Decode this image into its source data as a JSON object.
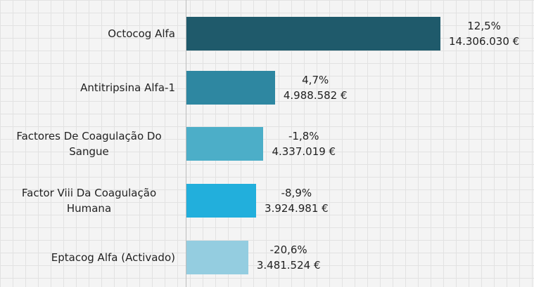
{
  "chart_data": {
    "type": "bar",
    "orientation": "horizontal",
    "categories": [
      "Octocog Alfa",
      "Antitripsina Alfa-1",
      "Factores De Coagulação Do Sangue",
      "Factor Viii Da Coagulação Humana",
      "Eptacog Alfa (Activado)"
    ],
    "values": [
      14306030,
      4988582,
      4337019,
      3924981,
      3481524
    ],
    "value_labels": [
      "14.306.030 €",
      "4.988.582 €",
      "4.337.019 €",
      "3.924.981 €",
      "3.481.524 €"
    ],
    "changes": [
      12.5,
      4.7,
      -1.8,
      -8.9,
      -20.6
    ],
    "change_labels": [
      "12,5%",
      "4,7%",
      "-1,8%",
      "-8,9%",
      "-20,6%"
    ],
    "colors": [
      "#1f5a6b",
      "#2e87a1",
      "#4caec8",
      "#22afdc",
      "#94cde0"
    ]
  }
}
